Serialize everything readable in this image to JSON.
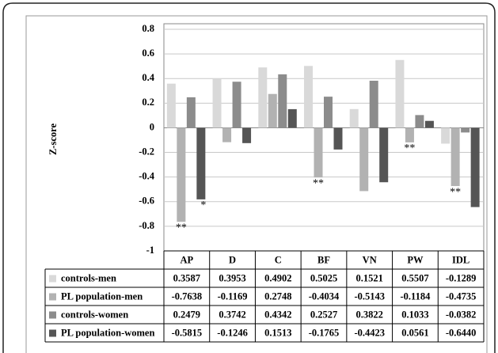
{
  "chart_data": {
    "type": "bar",
    "y_label": "Z-score",
    "categories": [
      "AP",
      "D",
      "C",
      "BF",
      "VN",
      "PW",
      "IDL"
    ],
    "series": [
      {
        "name": "controls-men",
        "color": "#d9d9d9",
        "values": [
          0.3587,
          0.3953,
          0.4902,
          0.5025,
          0.1521,
          0.5507,
          -0.1289
        ]
      },
      {
        "name": "PL population-men",
        "color": "#b2b2b2",
        "values": [
          -0.7638,
          -0.1169,
          0.2748,
          -0.4034,
          -0.5143,
          -0.1184,
          -0.4735
        ]
      },
      {
        "name": "controls-women",
        "color": "#8c8c8c",
        "values": [
          0.2479,
          0.3742,
          0.4342,
          0.2527,
          0.3822,
          0.1033,
          -0.0382
        ]
      },
      {
        "name": "PL population-women",
        "color": "#555555",
        "values": [
          -0.5815,
          -0.1246,
          0.1513,
          -0.1765,
          -0.4423,
          0.0561,
          -0.644
        ],
        "value_labels": [
          "-0.5815",
          "-0.1246",
          "0.1513",
          "-0.1765",
          "-0.4423",
          "0.0561",
          "-0.6440"
        ]
      }
    ],
    "annotations": [
      {
        "category": "AP",
        "series": "PL population-men",
        "text": "**"
      },
      {
        "category": "AP",
        "series": "PL population-women",
        "text": "*"
      },
      {
        "category": "BF",
        "series": "PL population-men",
        "text": "**"
      },
      {
        "category": "PW",
        "series": "PL population-men",
        "text": "**"
      },
      {
        "category": "IDL",
        "series": "PL population-men",
        "text": "**"
      }
    ],
    "ylim": [
      -1,
      0.8
    ],
    "yticks": [
      0.8,
      0.6,
      0.4,
      0.2,
      0,
      -0.2,
      -0.4,
      -0.6,
      -0.8,
      -1
    ],
    "grid": true
  }
}
